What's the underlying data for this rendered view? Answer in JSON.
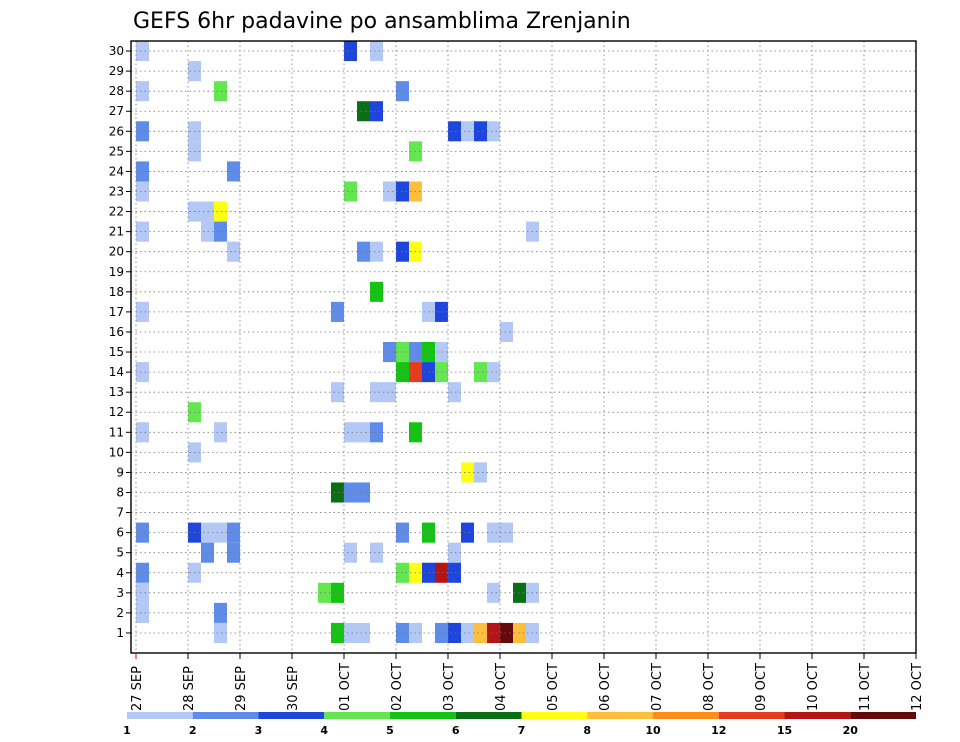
{
  "chart_data": {
    "type": "heatmap",
    "title": "GEFS 6hr padavine po ansamblima Zrenjanin",
    "xlabel": "",
    "ylabel": "",
    "x_tick_labels": [
      "27 SEP",
      "28 SEP",
      "29 SEP",
      "30 SEP",
      "01 OCT",
      "02 OCT",
      "03 OCT",
      "04 OCT",
      "05 OCT",
      "06 OCT",
      "07 OCT",
      "08 OCT",
      "09 OCT",
      "10 OCT",
      "11 OCT",
      "12 OCT"
    ],
    "x_step_hours": 6,
    "y_tick_labels": [
      "1",
      "2",
      "3",
      "4",
      "5",
      "6",
      "7",
      "8",
      "9",
      "10",
      "11",
      "12",
      "13",
      "14",
      "15",
      "16",
      "17",
      "18",
      "19",
      "20",
      "21",
      "22",
      "23",
      "24",
      "25",
      "26",
      "27",
      "28",
      "29",
      "30"
    ],
    "grid": true,
    "colorbar": {
      "labels": [
        "1",
        "2",
        "3",
        "4",
        "5",
        "6",
        "7",
        "8",
        "10",
        "12",
        "15",
        "20"
      ],
      "colors": [
        "#b4c8f5",
        "#5f8ce8",
        "#1e46dc",
        "#64e650",
        "#14c314",
        "#0a6e14",
        "#ffff14",
        "#ffbe3c",
        "#ff8c14",
        "#e63c1e",
        "#b41414",
        "#640a0a"
      ]
    },
    "cells": [
      [
        0,
        30,
        "#b4c8f5"
      ],
      [
        16,
        30,
        "#1e46dc"
      ],
      [
        18,
        30,
        "#b4c8f5"
      ],
      [
        4,
        29,
        "#b4c8f5"
      ],
      [
        0,
        28,
        "#b4c8f5"
      ],
      [
        6,
        28,
        "#64e650"
      ],
      [
        20,
        28,
        "#5f8ce8"
      ],
      [
        17,
        27,
        "#0a6e14"
      ],
      [
        18,
        27,
        "#1e46dc"
      ],
      [
        0,
        26,
        "#5f8ce8"
      ],
      [
        4,
        26,
        "#b4c8f5"
      ],
      [
        24,
        26,
        "#1e46dc"
      ],
      [
        25,
        26,
        "#b4c8f5"
      ],
      [
        26,
        26,
        "#1e46dc"
      ],
      [
        27,
        26,
        "#b4c8f5"
      ],
      [
        4,
        25,
        "#b4c8f5"
      ],
      [
        21,
        25,
        "#64e650"
      ],
      [
        0,
        24,
        "#5f8ce8"
      ],
      [
        7,
        24,
        "#5f8ce8"
      ],
      [
        0,
        23,
        "#b4c8f5"
      ],
      [
        16,
        23,
        "#64e650"
      ],
      [
        19,
        23,
        "#b4c8f5"
      ],
      [
        20,
        23,
        "#1e46dc"
      ],
      [
        21,
        23,
        "#ffbe3c"
      ],
      [
        4,
        22,
        "#b4c8f5"
      ],
      [
        5,
        22,
        "#b4c8f5"
      ],
      [
        6,
        22,
        "#ffff14"
      ],
      [
        0,
        21,
        "#b4c8f5"
      ],
      [
        5,
        21,
        "#b4c8f5"
      ],
      [
        6,
        21,
        "#5f8ce8"
      ],
      [
        30,
        21,
        "#b4c8f5"
      ],
      [
        7,
        20,
        "#b4c8f5"
      ],
      [
        17,
        20,
        "#5f8ce8"
      ],
      [
        18,
        20,
        "#b4c8f5"
      ],
      [
        20,
        20,
        "#1e46dc"
      ],
      [
        21,
        20,
        "#ffff14"
      ],
      [
        18,
        18,
        "#14c314"
      ],
      [
        0,
        17,
        "#b4c8f5"
      ],
      [
        15,
        17,
        "#5f8ce8"
      ],
      [
        22,
        17,
        "#b4c8f5"
      ],
      [
        23,
        17,
        "#1e46dc"
      ],
      [
        28,
        16,
        "#b4c8f5"
      ],
      [
        19,
        15,
        "#5f8ce8"
      ],
      [
        20,
        15,
        "#64e650"
      ],
      [
        21,
        15,
        "#5f8ce8"
      ],
      [
        22,
        15,
        "#14c314"
      ],
      [
        23,
        15,
        "#b4c8f5"
      ],
      [
        0,
        14,
        "#b4c8f5"
      ],
      [
        20,
        14,
        "#14c314"
      ],
      [
        21,
        14,
        "#e63c1e"
      ],
      [
        22,
        14,
        "#1e46dc"
      ],
      [
        23,
        14,
        "#64e650"
      ],
      [
        26,
        14,
        "#64e650"
      ],
      [
        27,
        14,
        "#b4c8f5"
      ],
      [
        15,
        13,
        "#b4c8f5"
      ],
      [
        18,
        13,
        "#b4c8f5"
      ],
      [
        19,
        13,
        "#b4c8f5"
      ],
      [
        24,
        13,
        "#b4c8f5"
      ],
      [
        4,
        12,
        "#64e650"
      ],
      [
        0,
        11,
        "#b4c8f5"
      ],
      [
        6,
        11,
        "#b4c8f5"
      ],
      [
        16,
        11,
        "#b4c8f5"
      ],
      [
        17,
        11,
        "#b4c8f5"
      ],
      [
        18,
        11,
        "#5f8ce8"
      ],
      [
        21,
        11,
        "#14c314"
      ],
      [
        4,
        10,
        "#b4c8f5"
      ],
      [
        25,
        9,
        "#ffff14"
      ],
      [
        26,
        9,
        "#b4c8f5"
      ],
      [
        15,
        8,
        "#0a6e14"
      ],
      [
        16,
        8,
        "#5f8ce8"
      ],
      [
        17,
        8,
        "#5f8ce8"
      ],
      [
        0,
        6,
        "#5f8ce8"
      ],
      [
        4,
        6,
        "#1e46dc"
      ],
      [
        5,
        6,
        "#b4c8f5"
      ],
      [
        6,
        6,
        "#b4c8f5"
      ],
      [
        7,
        6,
        "#5f8ce8"
      ],
      [
        20,
        6,
        "#5f8ce8"
      ],
      [
        22,
        6,
        "#14c314"
      ],
      [
        25,
        6,
        "#1e46dc"
      ],
      [
        27,
        6,
        "#b4c8f5"
      ],
      [
        28,
        6,
        "#b4c8f5"
      ],
      [
        5,
        5,
        "#5f8ce8"
      ],
      [
        7,
        5,
        "#5f8ce8"
      ],
      [
        16,
        5,
        "#b4c8f5"
      ],
      [
        18,
        5,
        "#b4c8f5"
      ],
      [
        24,
        5,
        "#b4c8f5"
      ],
      [
        0,
        4,
        "#5f8ce8"
      ],
      [
        4,
        4,
        "#b4c8f5"
      ],
      [
        20,
        4,
        "#64e650"
      ],
      [
        21,
        4,
        "#ffff14"
      ],
      [
        22,
        4,
        "#1e46dc"
      ],
      [
        23,
        4,
        "#b41414"
      ],
      [
        24,
        4,
        "#1e46dc"
      ],
      [
        0,
        3,
        "#b4c8f5"
      ],
      [
        14,
        3,
        "#64e650"
      ],
      [
        15,
        3,
        "#14c314"
      ],
      [
        27,
        3,
        "#b4c8f5"
      ],
      [
        29,
        3,
        "#0a6e14"
      ],
      [
        30,
        3,
        "#b4c8f5"
      ],
      [
        0,
        2,
        "#b4c8f5"
      ],
      [
        6,
        2,
        "#5f8ce8"
      ],
      [
        6,
        1,
        "#b4c8f5"
      ],
      [
        15,
        1,
        "#14c314"
      ],
      [
        16,
        1,
        "#b4c8f5"
      ],
      [
        17,
        1,
        "#b4c8f5"
      ],
      [
        20,
        1,
        "#5f8ce8"
      ],
      [
        21,
        1,
        "#b4c8f5"
      ],
      [
        23,
        1,
        "#5f8ce8"
      ],
      [
        24,
        1,
        "#1e46dc"
      ],
      [
        25,
        1,
        "#b4c8f5"
      ],
      [
        26,
        1,
        "#ffbe3c"
      ],
      [
        27,
        1,
        "#b41414"
      ],
      [
        28,
        1,
        "#640a0a"
      ],
      [
        29,
        1,
        "#ffbe3c"
      ],
      [
        30,
        1,
        "#b4c8f5"
      ]
    ]
  }
}
